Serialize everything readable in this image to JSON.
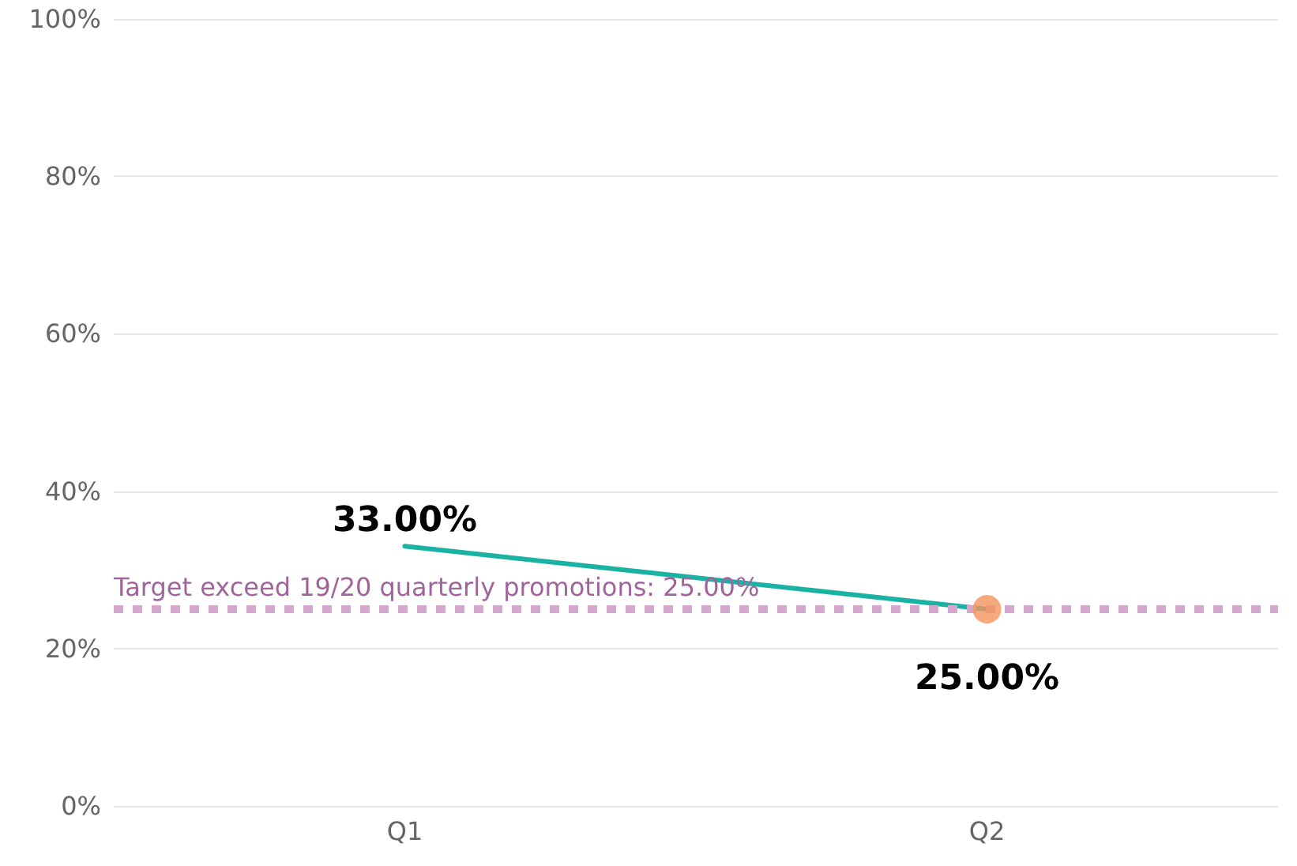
{
  "chart_data": {
    "type": "line",
    "categories": [
      "Q1",
      "Q2"
    ],
    "series": [
      {
        "color": "#1ab3a3",
        "values": [
          33,
          25
        ],
        "value_labels": [
          "33.00%",
          "25.00%"
        ],
        "marker": "none"
      },
      {
        "type": "scatter",
        "color": "#f4935d",
        "x": [
          "Q2"
        ],
        "values": [
          25
        ],
        "marker": "circle"
      }
    ],
    "ylim": [
      0,
      100
    ],
    "yticks": [
      {
        "value": 0,
        "label": "0%"
      },
      {
        "value": 20,
        "label": "20%"
      },
      {
        "value": 40,
        "label": "40%"
      },
      {
        "value": 60,
        "label": "60%"
      },
      {
        "value": 80,
        "label": "80%"
      },
      {
        "value": 100,
        "label": "100%"
      }
    ],
    "grid": "y",
    "ref_lines": [
      {
        "axis": "y",
        "value": 25,
        "label": "Target exceed 19/20 quarterly promotions: 25.00%",
        "color": "#d4a8cf",
        "line_style": "dashed"
      }
    ]
  }
}
